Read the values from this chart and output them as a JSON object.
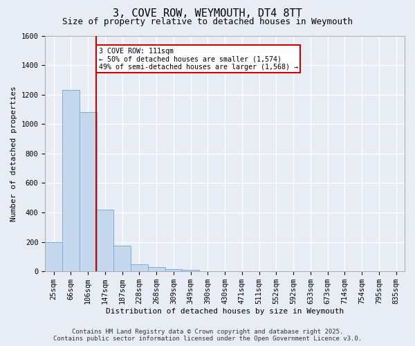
{
  "title": "3, COVE ROW, WEYMOUTH, DT4 8TT",
  "subtitle": "Size of property relative to detached houses in Weymouth",
  "xlabel": "Distribution of detached houses by size in Weymouth",
  "ylabel": "Number of detached properties",
  "bar_labels": [
    "25sqm",
    "66sqm",
    "106sqm",
    "147sqm",
    "187sqm",
    "228sqm",
    "268sqm",
    "309sqm",
    "349sqm",
    "390sqm",
    "430sqm",
    "471sqm",
    "511sqm",
    "552sqm",
    "592sqm",
    "633sqm",
    "673sqm",
    "714sqm",
    "754sqm",
    "795sqm",
    "835sqm"
  ],
  "bar_values": [
    200,
    1230,
    1080,
    420,
    175,
    47,
    27,
    14,
    12,
    0,
    0,
    0,
    0,
    0,
    0,
    0,
    0,
    0,
    0,
    0,
    0
  ],
  "bar_color": "#c5d8ee",
  "bar_edge_color": "#7aadd4",
  "ylim": [
    0,
    1600
  ],
  "yticks": [
    0,
    200,
    400,
    600,
    800,
    1000,
    1200,
    1400,
    1600
  ],
  "red_line_x": 2.48,
  "annotation_text": "3 COVE ROW: 111sqm\n← 50% of detached houses are smaller (1,574)\n49% of semi-detached houses are larger (1,568) →",
  "annotation_box_color": "#ffffff",
  "annotation_border_color": "#cc0000",
  "footer_line1": "Contains HM Land Registry data © Crown copyright and database right 2025.",
  "footer_line2": "Contains public sector information licensed under the Open Government Licence v3.0.",
  "bg_color": "#e8edf5",
  "plot_bg_color": "#e8edf5",
  "grid_color": "#ffffff",
  "title_fontsize": 11,
  "subtitle_fontsize": 9,
  "axis_label_fontsize": 8,
  "tick_fontsize": 7.5,
  "footer_fontsize": 6.5
}
